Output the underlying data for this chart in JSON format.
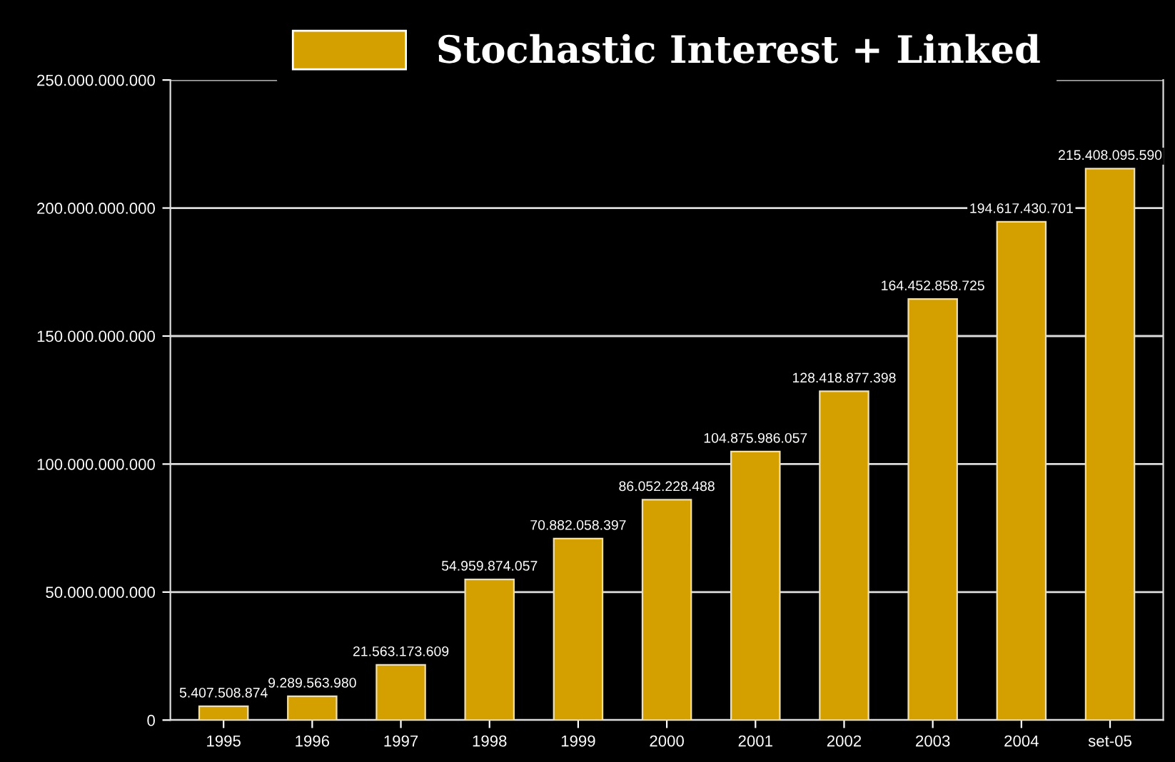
{
  "chart_data": {
    "type": "bar",
    "categories": [
      "1995",
      "1996",
      "1997",
      "1998",
      "1999",
      "2000",
      "2001",
      "2002",
      "2003",
      "2004",
      "set-05"
    ],
    "series": [
      {
        "name": "Stochastic Interest + Linked",
        "color": "#d4a000",
        "values": [
          5407508874,
          9289563980,
          21563173609,
          54959874057,
          70882058397,
          86052228488,
          104875986057,
          128418877398,
          164452858725,
          194617430701,
          215408095590
        ],
        "value_labels": [
          "5.407.508.874",
          "9.289.563.980",
          "21.563.173.609",
          "54.959.874.057",
          "70.882.058.397",
          "86.052.228.488",
          "104.875.986.057",
          "128.418.877.398",
          "164.452.858.725",
          "194.617.430.701",
          "215.408.095.590"
        ]
      }
    ],
    "ylim": [
      0,
      250000000000
    ],
    "yticks": [
      {
        "value": 0,
        "label": "0"
      },
      {
        "value": 50000000000,
        "label": "50.000.000.000"
      },
      {
        "value": 100000000000,
        "label": "100.000.000.000"
      },
      {
        "value": 150000000000,
        "label": "150.000.000.000"
      },
      {
        "value": 200000000000,
        "label": "200.000.000.000"
      },
      {
        "value": 250000000000,
        "label": "250.000.000.000"
      }
    ],
    "grid": "y",
    "legend": "top"
  }
}
